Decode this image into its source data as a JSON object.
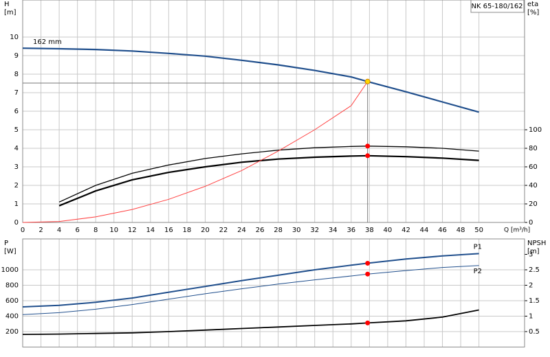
{
  "chart_data": [
    {
      "type": "line",
      "title": "NK 65-180/162",
      "ylabel": "H",
      "yunit": "[m]",
      "y2label": "eta",
      "y2unit": "[%]",
      "xlabel": "Q [m³/h]",
      "xlim": [
        0,
        55
      ],
      "xticks": [
        0,
        2,
        4,
        6,
        8,
        10,
        12,
        14,
        16,
        18,
        20,
        22,
        24,
        26,
        28,
        30,
        32,
        34,
        36,
        38,
        40,
        42,
        44,
        46,
        48,
        50
      ],
      "ylim": [
        0,
        12
      ],
      "yticks": [
        0,
        1,
        2,
        3,
        4,
        5,
        6,
        7,
        8,
        9,
        10
      ],
      "y2lim": [
        0,
        240
      ],
      "y2ticks": [
        0,
        20,
        40,
        60,
        80,
        100
      ],
      "grid": true,
      "series": [
        {
          "name": "162 mm",
          "color": "#1f4e8c",
          "width": 2.2,
          "x": [
            0,
            4,
            8,
            12,
            16,
            20,
            24,
            28,
            32,
            36,
            37.8,
            42,
            46,
            50
          ],
          "values": [
            9.4,
            9.37,
            9.33,
            9.25,
            9.12,
            8.97,
            8.75,
            8.5,
            8.2,
            7.85,
            7.6,
            7.05,
            6.5,
            5.95
          ]
        },
        {
          "color": "#000000",
          "width": 1.3,
          "axis": "y2",
          "x": [
            4,
            8,
            12,
            16,
            20,
            24,
            28,
            32,
            36,
            37.8,
            42,
            46,
            50
          ],
          "values": [
            22,
            40,
            53,
            62,
            69,
            74,
            78,
            80.6,
            82,
            82.4,
            81.6,
            80,
            77
          ]
        },
        {
          "color": "#000000",
          "width": 2.2,
          "axis": "y2",
          "x": [
            4,
            8,
            12,
            16,
            20,
            24,
            28,
            32,
            36,
            37.8,
            42,
            46,
            50
          ],
          "values": [
            18,
            34,
            46,
            54,
            60,
            65,
            68.4,
            70.4,
            71.6,
            72,
            71,
            69.4,
            67
          ]
        },
        {
          "color": "#ff4040",
          "width": 1,
          "x": [
            0,
            4,
            8,
            12,
            16,
            20,
            24,
            28,
            32,
            36,
            37.8
          ],
          "values": [
            0,
            0.05,
            0.3,
            0.7,
            1.25,
            1.95,
            2.8,
            3.85,
            5.0,
            6.3,
            7.6
          ]
        }
      ],
      "guide_q": 37.8,
      "guide_h": 7.52,
      "markers": [
        {
          "x": 37.8,
          "y": 7.6,
          "color": "#ffd700"
        },
        {
          "x": 37.8,
          "y": 82.4,
          "axis": "y2",
          "color": "#ff0000"
        },
        {
          "x": 37.8,
          "y": 72,
          "axis": "y2",
          "color": "#ff0000"
        }
      ]
    },
    {
      "type": "line",
      "ylabel": "P",
      "yunit": "[W]",
      "y2label": "NPSH",
      "y2unit": "[m]",
      "xlim": [
        0,
        55
      ],
      "ylim": [
        0,
        1400
      ],
      "yticks": [
        200,
        400,
        600,
        800,
        1000
      ],
      "y2lim": [
        0,
        3.5
      ],
      "y2ticks": [
        0.5,
        1,
        1.5,
        2,
        2.5,
        3
      ],
      "grid": true,
      "series": [
        {
          "name": "P1",
          "color": "#1f4e8c",
          "width": 2,
          "x": [
            0,
            4,
            8,
            12,
            16,
            20,
            24,
            28,
            32,
            36,
            37.8,
            42,
            46,
            50
          ],
          "values": [
            520,
            540,
            580,
            635,
            710,
            785,
            860,
            930,
            1000,
            1060,
            1085,
            1140,
            1180,
            1210
          ]
        },
        {
          "name": "P2",
          "color": "#1f4e8c",
          "width": 1,
          "x": [
            0,
            4,
            8,
            12,
            16,
            20,
            24,
            28,
            32,
            36,
            37.8,
            42,
            46,
            50
          ],
          "values": [
            420,
            445,
            490,
            550,
            620,
            690,
            755,
            815,
            870,
            920,
            945,
            990,
            1030,
            1055
          ]
        },
        {
          "color": "#000000",
          "width": 1.8,
          "axis": "y2",
          "x": [
            0,
            4,
            8,
            12,
            16,
            20,
            24,
            28,
            32,
            36,
            37.8,
            42,
            46,
            50
          ],
          "values": [
            0.41,
            0.42,
            0.44,
            0.46,
            0.5,
            0.55,
            0.6,
            0.65,
            0.7,
            0.75,
            0.78,
            0.85,
            0.97,
            1.2
          ]
        }
      ],
      "markers": [
        {
          "x": 37.8,
          "y": 1085,
          "color": "#ff0000"
        },
        {
          "x": 37.8,
          "y": 945,
          "color": "#ff0000"
        },
        {
          "x": 37.8,
          "y": 0.78,
          "axis": "y2",
          "color": "#ff0000"
        }
      ]
    }
  ]
}
